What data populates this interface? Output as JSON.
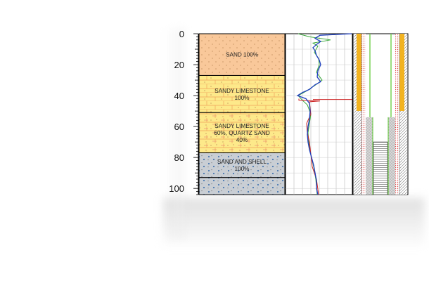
{
  "depth_axis": {
    "ticks": [
      "0",
      "20",
      "40",
      "60",
      "80",
      "100"
    ],
    "min": 0,
    "max": 104
  },
  "lithology": [
    {
      "top": 0,
      "bottom": 27,
      "label": "SAND 100%",
      "pattern": "sand",
      "color": "#f9c89a"
    },
    {
      "top": 27,
      "bottom": 51,
      "label": "SANDY LIMESTONE 100%",
      "pattern": "limestone",
      "color": "#fde98a"
    },
    {
      "top": 51,
      "bottom": 77,
      "label": "SANDY LIMESTONE 60%, QUARTZ SAND 40%",
      "pattern": "limestone-sand",
      "color": "#fde98a"
    },
    {
      "top": 77,
      "bottom": 93,
      "label": "SAND AND SHELL 100%",
      "pattern": "shell",
      "color": "#c9ced4"
    },
    {
      "top": 93,
      "bottom": 104,
      "label": "",
      "pattern": "shell",
      "color": "#c9ced4"
    }
  ],
  "log_traces": [
    {
      "name": "",
      "color": "#1f3fbf"
    },
    {
      "name": "",
      "color": "#3aa83a"
    },
    {
      "name": "",
      "color": "#cc2222"
    }
  ],
  "well_diagram": {
    "casing_bottom_depth": 50,
    "screen_top_depth": 54,
    "sump_top_depth": 70,
    "colors": {
      "grout": "#f2b320",
      "sand_pack": "#cfcfcf",
      "casing": "#6fcf4a",
      "filter": "#f0a0a0"
    }
  }
}
